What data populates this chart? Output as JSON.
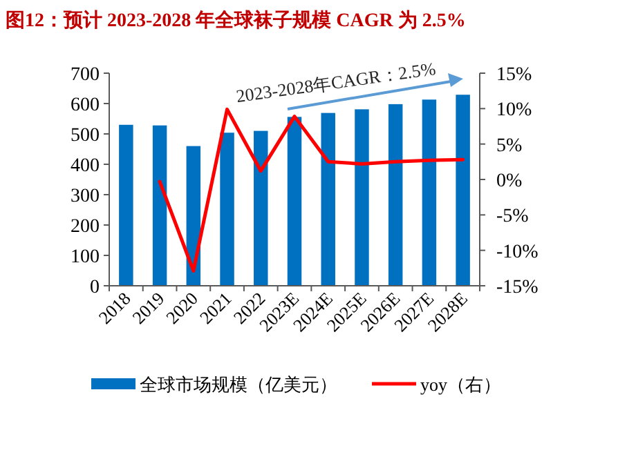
{
  "chart_data": {
    "type": "bar",
    "title": "图12：预计 2023-2028 年全球袜子规模 CAGR 为 2.5%",
    "categories": [
      "2018",
      "2019",
      "2020",
      "2021",
      "2022",
      "2023E",
      "2024E",
      "2025E",
      "2026E",
      "2027E",
      "2028E"
    ],
    "series": [
      {
        "name": "全球市场规模（亿美元）",
        "color": "#0070c0",
        "values": [
          530,
          528,
          460,
          504,
          510,
          556,
          569,
          581,
          598,
          613,
          629
        ]
      },
      {
        "name": "yoy（右）",
        "type": "line",
        "axis": "y2",
        "color": "#ff0000",
        "values": [
          null,
          -0.3,
          -12.9,
          9.9,
          1.2,
          8.9,
          2.5,
          2.2,
          2.5,
          2.7,
          2.8
        ]
      }
    ],
    "ylim": [
      0,
      700
    ],
    "yticks": [
      0,
      100,
      200,
      300,
      400,
      500,
      600,
      700
    ],
    "y2lim": [
      -15,
      15
    ],
    "y2ticks": [
      {
        "value": -15,
        "label": "-15%"
      },
      {
        "value": -10,
        "label": "-10%"
      },
      {
        "value": -5,
        "label": "-5%"
      },
      {
        "value": 0,
        "label": "0%"
      },
      {
        "value": 5,
        "label": "5%"
      },
      {
        "value": 10,
        "label": "10%"
      },
      {
        "value": 15,
        "label": "15%"
      }
    ],
    "annotations": [
      "2023-2028年CAGR：2.5%"
    ],
    "legend": "bottom",
    "marker": "none",
    "grid": false
  }
}
